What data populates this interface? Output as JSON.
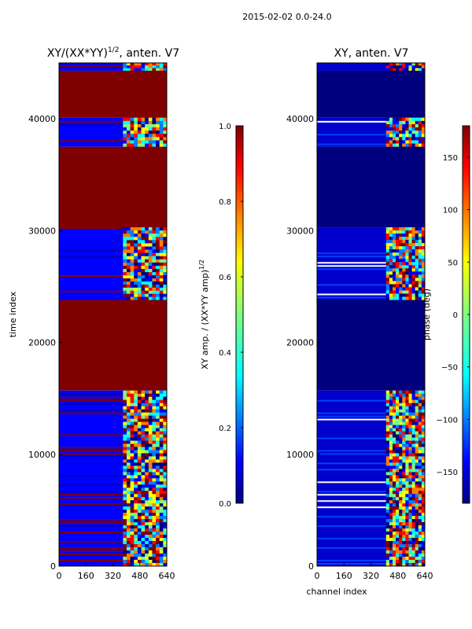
{
  "suptitle": "2015-02-02 0.0-24.0",
  "colors": {
    "dark_red": "#800000",
    "dark_blue": "#00007f",
    "jet": [
      "#00007f",
      "#0000ff",
      "#007fff",
      "#00ffff",
      "#7fff7f",
      "#ffff00",
      "#ff7f00",
      "#ff0000",
      "#7f0000"
    ]
  },
  "chart_data": [
    {
      "type": "heatmap",
      "title": "XY/(XX*YY)",
      "title_sup": "1/2",
      "title_suffix": ", anten. V7",
      "xlabel": "",
      "ylabel": "time index",
      "xlim": [
        0,
        640
      ],
      "ylim": [
        0,
        45000
      ],
      "xticks": [
        0,
        160,
        320,
        480,
        640
      ],
      "yticks": [
        0,
        10000,
        20000,
        30000,
        40000
      ],
      "ytick_labels": [
        "0",
        "10000",
        "20000",
        "30000",
        "40000"
      ],
      "xtick_labels": [
        "0",
        "160",
        "320",
        "480",
        "640"
      ],
      "colorbar": {
        "label": "XY amp. / (XX*YY amp)",
        "label_sup": "1/2",
        "range": [
          0.0,
          1.0
        ],
        "ticks": [
          0.0,
          0.2,
          0.4,
          0.6,
          0.8,
          1.0
        ],
        "tick_labels": [
          "0.0",
          "0.2",
          "0.4",
          "0.6",
          "0.8",
          "1.0"
        ]
      },
      "blocks": [
        {
          "y0": 44300,
          "y1": 45000,
          "kind": "mixed"
        },
        {
          "y0": 40100,
          "y1": 44300,
          "kind": "flagged"
        },
        {
          "y0": 37500,
          "y1": 40100,
          "kind": "mixed"
        },
        {
          "y0": 30300,
          "y1": 37500,
          "kind": "flagged"
        },
        {
          "y0": 26000,
          "y1": 30300,
          "kind": "mixed"
        },
        {
          "y0": 23800,
          "y1": 26000,
          "kind": "mixed"
        },
        {
          "y0": 15700,
          "y1": 23800,
          "kind": "flagged"
        },
        {
          "y0": 0,
          "y1": 15700,
          "kind": "mixed"
        }
      ],
      "active_channels": [
        [
          380,
          640
        ]
      ]
    },
    {
      "type": "heatmap",
      "title": "XY, anten. V7",
      "xlabel": "channel index",
      "ylabel": "",
      "xlim": [
        0,
        640
      ],
      "ylim": [
        0,
        45000
      ],
      "xticks": [
        0,
        160,
        320,
        480,
        640
      ],
      "yticks": [
        0,
        10000,
        20000,
        30000,
        40000
      ],
      "ytick_labels": [
        "0",
        "10000",
        "20000",
        "30000",
        "40000"
      ],
      "xtick_labels": [
        "0",
        "160",
        "320",
        "480",
        "640"
      ],
      "colorbar": {
        "label": "phase (deg)",
        "range": [
          -180,
          180
        ],
        "ticks": [
          -150,
          -100,
          -50,
          0,
          50,
          100,
          150
        ],
        "tick_labels": [
          "−150",
          "−100",
          "−50",
          "0",
          "50",
          "100",
          "150"
        ]
      },
      "blocks": [
        {
          "y0": 44300,
          "y1": 45000,
          "kind": "mixed"
        },
        {
          "y0": 40100,
          "y1": 44300,
          "kind": "flagged"
        },
        {
          "y0": 37500,
          "y1": 40100,
          "kind": "mixed"
        },
        {
          "y0": 30300,
          "y1": 37500,
          "kind": "flagged"
        },
        {
          "y0": 23800,
          "y1": 30300,
          "kind": "mixed"
        },
        {
          "y0": 15700,
          "y1": 23800,
          "kind": "flagged"
        },
        {
          "y0": 0,
          "y1": 15700,
          "kind": "mixed"
        }
      ],
      "active_channels": [
        [
          410,
          640
        ]
      ]
    }
  ]
}
